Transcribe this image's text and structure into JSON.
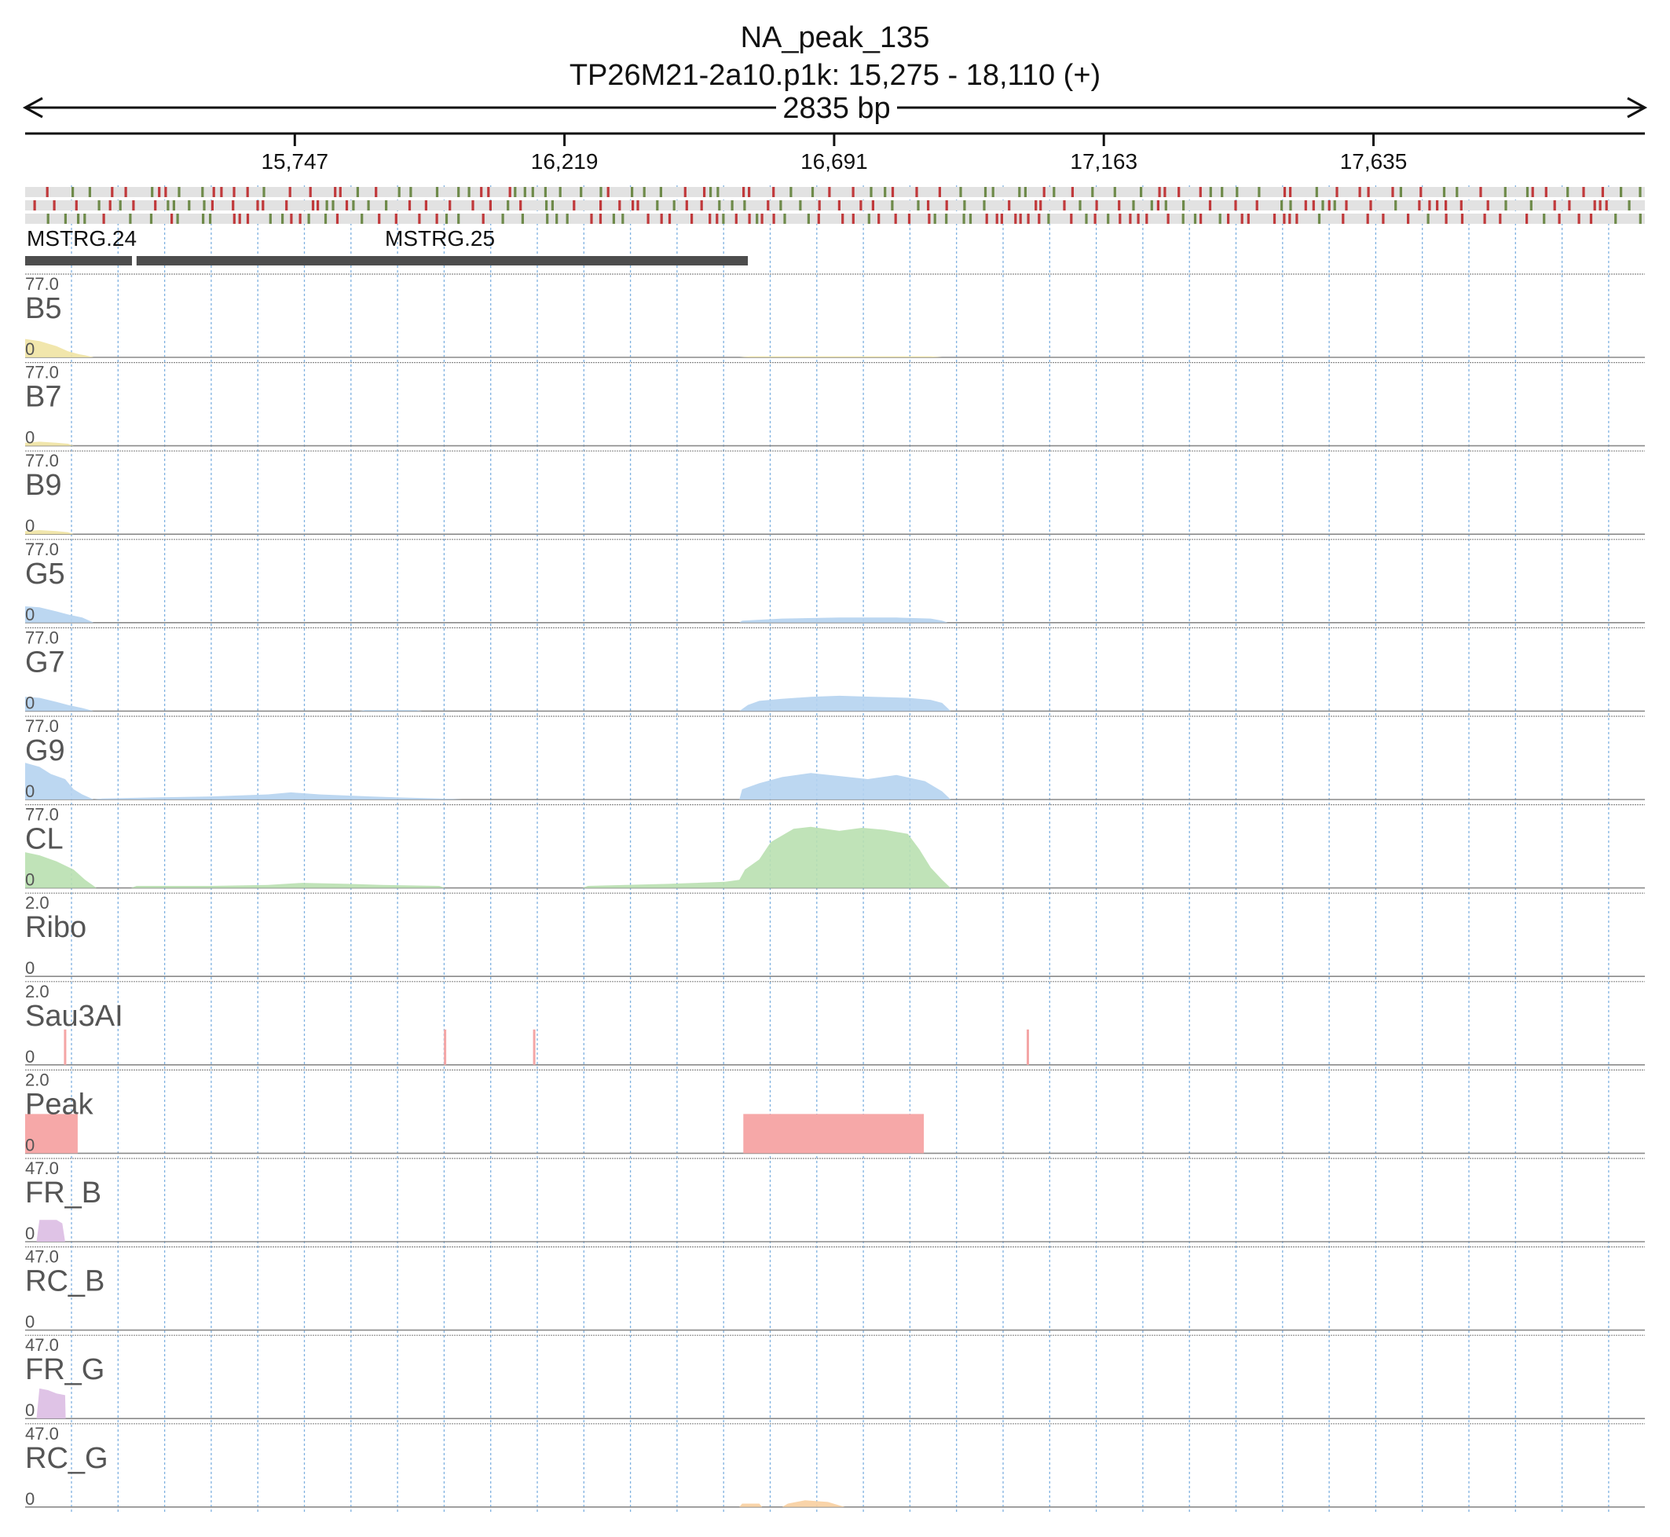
{
  "header": {
    "title": "NA_peak_135",
    "subtitle": "TP26M21-2a10.p1k: 15,275 - 18,110 (+)",
    "span_label": "2835 bp"
  },
  "chart_data": {
    "type": "area",
    "x_range": [
      15275,
      18110
    ],
    "strand": "+",
    "x_ticks": [
      15747,
      16219,
      16691,
      17163,
      17635
    ],
    "x_tick_labels": [
      "15,747",
      "16,219",
      "16,691",
      "17,163",
      "17,635"
    ],
    "grid": true,
    "genes": [
      {
        "name": "MSTRG.24",
        "start": 15275,
        "end": 15462
      },
      {
        "name": "MSTRG.25",
        "start": 15470,
        "end": 16540
      }
    ],
    "tracks": [
      {
        "name": "B5",
        "max_label": "77.0",
        "min_label": "0",
        "ylim": [
          0,
          77
        ],
        "color": "#f0e3a3",
        "points": [
          [
            15275,
            18
          ],
          [
            15300,
            16
          ],
          [
            15330,
            11
          ],
          [
            15350,
            6
          ],
          [
            15370,
            3
          ],
          [
            15380,
            2
          ],
          [
            15395,
            0
          ],
          [
            16525,
            0
          ],
          [
            16545,
            1
          ],
          [
            16700,
            1
          ],
          [
            16860,
            1
          ],
          [
            16880,
            0
          ]
        ]
      },
      {
        "name": "B7",
        "max_label": "77.0",
        "min_label": "0",
        "ylim": [
          0,
          77
        ],
        "color": "#f0e3a3",
        "points": [
          [
            15275,
            3
          ],
          [
            15300,
            4
          ],
          [
            15330,
            3
          ],
          [
            15350,
            2
          ],
          [
            15360,
            0
          ]
        ]
      },
      {
        "name": "B9",
        "max_label": "77.0",
        "min_label": "0",
        "ylim": [
          0,
          77
        ],
        "color": "#f0e3a3",
        "points": [
          [
            15275,
            3
          ],
          [
            15300,
            4
          ],
          [
            15330,
            3
          ],
          [
            15350,
            2
          ],
          [
            15360,
            0
          ]
        ]
      },
      {
        "name": "G5",
        "max_label": "77.0",
        "min_label": "0",
        "ylim": [
          0,
          77
        ],
        "color": "#b5d3f0",
        "points": [
          [
            15275,
            16
          ],
          [
            15300,
            15
          ],
          [
            15330,
            11
          ],
          [
            15350,
            8
          ],
          [
            15375,
            5
          ],
          [
            15395,
            0
          ],
          [
            16525,
            0
          ],
          [
            16530,
            2
          ],
          [
            16600,
            4
          ],
          [
            16700,
            5
          ],
          [
            16800,
            5
          ],
          [
            16860,
            4
          ],
          [
            16880,
            2
          ],
          [
            16890,
            0
          ]
        ]
      },
      {
        "name": "G7",
        "max_label": "77.0",
        "min_label": "0",
        "ylim": [
          0,
          77
        ],
        "color": "#b5d3f0",
        "points": [
          [
            15275,
            14
          ],
          [
            15300,
            13
          ],
          [
            15330,
            9
          ],
          [
            15350,
            6
          ],
          [
            15375,
            3
          ],
          [
            15395,
            0
          ],
          [
            15860,
            0
          ],
          [
            15870,
            1
          ],
          [
            15960,
            1
          ],
          [
            15970,
            0
          ],
          [
            16525,
            0
          ],
          [
            16540,
            6
          ],
          [
            16560,
            10
          ],
          [
            16600,
            12
          ],
          [
            16650,
            14
          ],
          [
            16700,
            15
          ],
          [
            16760,
            14
          ],
          [
            16820,
            13
          ],
          [
            16860,
            11
          ],
          [
            16880,
            8
          ],
          [
            16895,
            0
          ]
        ]
      },
      {
        "name": "G9",
        "max_label": "77.0",
        "min_label": "0",
        "ylim": [
          0,
          77
        ],
        "color": "#b5d3f0",
        "points": [
          [
            15275,
            36
          ],
          [
            15300,
            32
          ],
          [
            15320,
            25
          ],
          [
            15345,
            20
          ],
          [
            15360,
            10
          ],
          [
            15375,
            5
          ],
          [
            15395,
            0
          ],
          [
            15410,
            1
          ],
          [
            15500,
            2
          ],
          [
            15600,
            3
          ],
          [
            15700,
            5
          ],
          [
            15740,
            7
          ],
          [
            15790,
            5
          ],
          [
            15880,
            3
          ],
          [
            15930,
            2
          ],
          [
            16000,
            1
          ],
          [
            16040,
            0
          ],
          [
            16525,
            0
          ],
          [
            16530,
            10
          ],
          [
            16560,
            16
          ],
          [
            16600,
            22
          ],
          [
            16650,
            26
          ],
          [
            16700,
            23
          ],
          [
            16750,
            20
          ],
          [
            16800,
            24
          ],
          [
            16850,
            18
          ],
          [
            16880,
            8
          ],
          [
            16895,
            0
          ]
        ]
      },
      {
        "name": "CL",
        "max_label": "77.0",
        "min_label": "0",
        "ylim": [
          0,
          77
        ],
        "color": "#b9e0b0",
        "points": [
          [
            15275,
            35
          ],
          [
            15300,
            32
          ],
          [
            15330,
            26
          ],
          [
            15360,
            18
          ],
          [
            15380,
            8
          ],
          [
            15400,
            0
          ],
          [
            15460,
            0
          ],
          [
            15470,
            2
          ],
          [
            15600,
            2
          ],
          [
            15700,
            3
          ],
          [
            15760,
            5
          ],
          [
            15840,
            4
          ],
          [
            15900,
            3
          ],
          [
            16000,
            2
          ],
          [
            16010,
            0
          ],
          [
            16250,
            0
          ],
          [
            16260,
            2
          ],
          [
            16400,
            4
          ],
          [
            16500,
            6
          ],
          [
            16525,
            8
          ],
          [
            16535,
            18
          ],
          [
            16560,
            28
          ],
          [
            16580,
            45
          ],
          [
            16620,
            58
          ],
          [
            16650,
            60
          ],
          [
            16700,
            56
          ],
          [
            16740,
            59
          ],
          [
            16780,
            57
          ],
          [
            16820,
            53
          ],
          [
            16840,
            38
          ],
          [
            16860,
            20
          ],
          [
            16880,
            8
          ],
          [
            16895,
            0
          ]
        ]
      },
      {
        "name": "Ribo",
        "max_label": "2.0",
        "min_label": "0",
        "ylim": [
          0,
          2
        ],
        "color": "#f4a6a6",
        "points": []
      },
      {
        "name": "Sau3AI",
        "max_label": "2.0",
        "min_label": "0",
        "ylim": [
          0,
          2
        ],
        "color": "#f4a6a6",
        "render": "sticks",
        "sticks": [
          [
            15345,
            1
          ],
          [
            16010,
            1
          ],
          [
            16166,
            1
          ],
          [
            17030,
            1
          ]
        ]
      },
      {
        "name": "Peak",
        "max_label": "2.0",
        "min_label": "0",
        "ylim": [
          0,
          2
        ],
        "color": "#f6a8a8",
        "render": "blocks",
        "blocks": [
          [
            15275,
            15367,
            1
          ],
          [
            16532,
            16848,
            1
          ]
        ]
      },
      {
        "name": "FR_B",
        "max_label": "47.0",
        "min_label": "0",
        "ylim": [
          0,
          47
        ],
        "color": "#dcbde3",
        "points": [
          [
            15275,
            0
          ],
          [
            15295,
            0
          ],
          [
            15300,
            13
          ],
          [
            15330,
            13
          ],
          [
            15340,
            11
          ],
          [
            15345,
            0
          ]
        ]
      },
      {
        "name": "RC_B",
        "max_label": "47.0",
        "min_label": "0",
        "ylim": [
          0,
          47
        ],
        "color": "#dcbde3",
        "points": []
      },
      {
        "name": "FR_G",
        "max_label": "47.0",
        "min_label": "0",
        "ylim": [
          0,
          47
        ],
        "color": "#dcbde3",
        "points": [
          [
            15275,
            0
          ],
          [
            15295,
            0
          ],
          [
            15300,
            18
          ],
          [
            15315,
            17
          ],
          [
            15330,
            15
          ],
          [
            15345,
            14
          ],
          [
            15346,
            0
          ]
        ]
      },
      {
        "name": "RC_G",
        "max_label": "47.0",
        "min_label": "0",
        "ylim": [
          0,
          47
        ],
        "color": "#f8cfa0",
        "points": [
          [
            16525,
            0
          ],
          [
            16530,
            2
          ],
          [
            16560,
            2
          ],
          [
            16565,
            0
          ],
          [
            16600,
            0
          ],
          [
            16610,
            2
          ],
          [
            16640,
            4
          ],
          [
            16680,
            3
          ],
          [
            16700,
            1
          ],
          [
            16710,
            0
          ]
        ]
      }
    ]
  },
  "colors": {
    "seq_red": "#c0393b",
    "seq_green": "#6e8a4a",
    "seq_bg": "#e2e2e2",
    "gene": "#4d4d4d",
    "grid": "#7fb1e0",
    "separator": "#8a8a8a"
  }
}
